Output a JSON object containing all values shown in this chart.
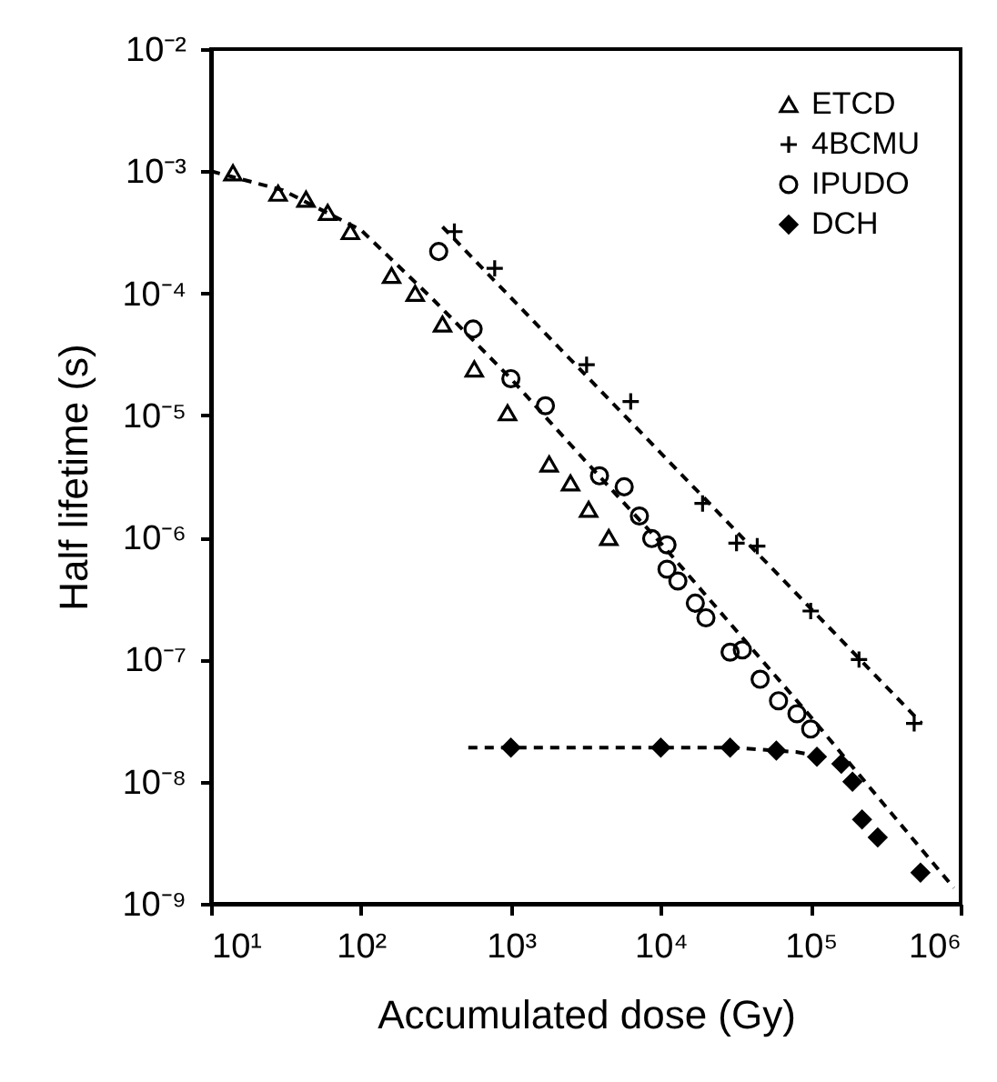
{
  "chart_data": {
    "type": "scatter",
    "xlabel": "Accumulated dose (Gy)",
    "ylabel": "Half lifetime (s)",
    "log": "xy",
    "legend": "top right",
    "xlim": [
      10,
      1000000
    ],
    "ylim": [
      1e-09,
      0.01
    ],
    "xticks": [
      {
        "value": 10,
        "label": "10¹"
      },
      {
        "value": 100,
        "label": "10²"
      },
      {
        "value": 1000,
        "label": "10³"
      },
      {
        "value": 10000,
        "label": "10⁴"
      },
      {
        "value": 100000,
        "label": "10⁵"
      },
      {
        "value": 1000000,
        "label": "10⁶"
      }
    ],
    "yticks": [
      {
        "value": 1e-09,
        "label": "10⁻⁹"
      },
      {
        "value": 1e-08,
        "label": "10⁻⁸"
      },
      {
        "value": 1e-07,
        "label": "10⁻⁷"
      },
      {
        "value": 1e-06,
        "label": "10⁻⁶"
      },
      {
        "value": 1e-05,
        "label": "10⁻⁵"
      },
      {
        "value": 0.0001,
        "label": "10⁻⁴"
      },
      {
        "value": 0.001,
        "label": "10⁻³"
      },
      {
        "value": 0.01,
        "label": "10⁻²"
      }
    ],
    "series": [
      {
        "name": "ETCD",
        "marker": "triangle",
        "color": "#000000",
        "x": [
          14,
          28,
          43,
          60,
          85,
          160,
          230,
          350,
          570,
          950,
          1800,
          2500,
          3300,
          4500
        ],
        "values": [
          0.00097,
          0.00066,
          0.00059,
          0.00046,
          0.00032,
          0.00014,
          0.0001,
          5.6e-05,
          2.4e-05,
          1.05e-05,
          4e-06,
          2.8e-06,
          1.7e-06,
          1e-06
        ]
      },
      {
        "name": "4BCMU",
        "marker": "cross",
        "color": "#000000",
        "x": [
          420,
          780,
          3200,
          6300,
          19000,
          32000,
          44000,
          100000,
          210000,
          490000
        ],
        "values": [
          0.00032,
          0.00016,
          2.6e-05,
          1.3e-05,
          1.9e-06,
          9e-07,
          8.5e-07,
          2.5e-07,
          1e-07,
          3e-08
        ]
      },
      {
        "name": "IPUDO",
        "marker": "circle",
        "color": "#000000",
        "x": [
          330,
          560,
          1000,
          1700,
          3900,
          5700,
          7200,
          8700,
          11000,
          11000,
          13000,
          17000,
          20000,
          29000,
          35000,
          46000,
          61000,
          81000,
          100000
        ],
        "values": [
          0.00022,
          5.1e-05,
          2e-05,
          1.2e-05,
          3.2e-06,
          2.6e-06,
          1.5e-06,
          9.8e-07,
          8.7e-07,
          5.5e-07,
          4.4e-07,
          2.9e-07,
          2.2e-07,
          1.15e-07,
          1.2e-07,
          6.9e-08,
          4.6e-08,
          3.6e-08,
          2.7e-08
        ]
      },
      {
        "name": "DCH",
        "marker": "diamond",
        "color": "#000000",
        "x": [
          1000,
          10000,
          29000,
          59000,
          110000,
          160000,
          190000,
          220000,
          280000,
          540000
        ],
        "values": [
          1.9e-08,
          1.9e-08,
          1.9e-08,
          1.8e-08,
          1.6e-08,
          1.4e-08,
          1e-08,
          4.9e-09,
          3.5e-09,
          1.8e-09
        ]
      },
      {
        "type": "line",
        "line_style": "dashed",
        "color": "#000000",
        "x": [
          10,
          30,
          100,
          300,
          1000,
          3000,
          10000,
          100000,
          900000
        ],
        "values": [
          0.001,
          0.0007,
          0.00033,
          9e-05,
          2e-05,
          4.5e-06,
          9e-07,
          3.4e-08,
          1.35e-09
        ]
      },
      {
        "type": "line",
        "line_style": "dashed",
        "color": "#000000",
        "x": [
          350,
          550000
        ],
        "values": [
          0.00035,
          3e-08
        ]
      },
      {
        "type": "line",
        "line_style": "dashed",
        "color": "#000000",
        "x": [
          520,
          30000,
          80000,
          120000
        ],
        "values": [
          1.9e-08,
          1.9e-08,
          1.75e-08,
          1.6e-08
        ]
      }
    ]
  }
}
